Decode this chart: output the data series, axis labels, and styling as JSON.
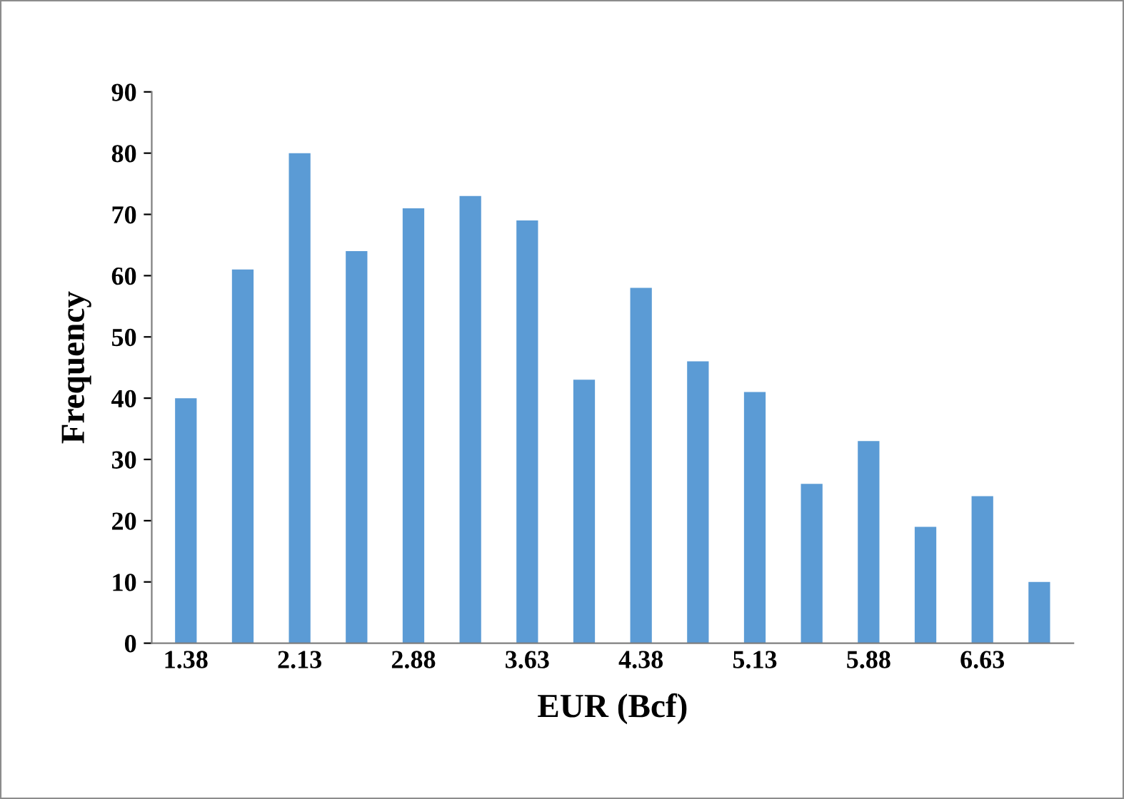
{
  "chart_data": {
    "type": "bar",
    "xlabel": "EUR (Bcf)",
    "ylabel": "Frequency",
    "categories": [
      "1.38",
      null,
      "2.13",
      null,
      "2.88",
      null,
      "3.63",
      null,
      "4.38",
      null,
      "5.13",
      null,
      "5.88",
      null,
      "6.63",
      null
    ],
    "values": [
      40,
      61,
      80,
      64,
      71,
      73,
      69,
      43,
      58,
      46,
      41,
      26,
      33,
      19,
      24,
      10
    ],
    "color": "#5b9bd5",
    "ylim": [
      0,
      90
    ],
    "yticks": [
      0,
      10,
      20,
      30,
      40,
      50,
      60,
      70,
      80,
      90
    ],
    "grid": false,
    "legend": false
  }
}
